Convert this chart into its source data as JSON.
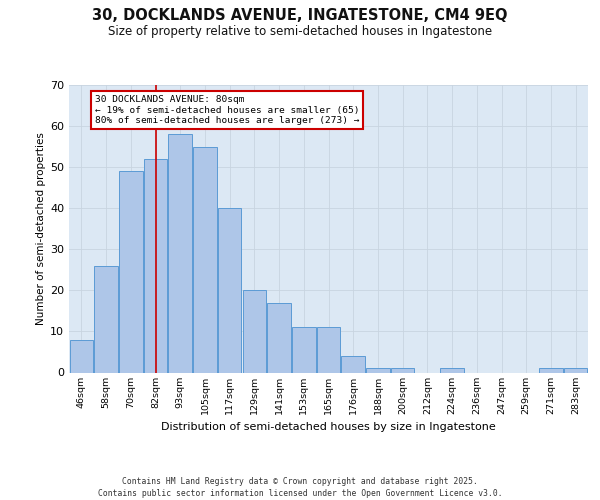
{
  "title1": "30, DOCKLANDS AVENUE, INGATESTONE, CM4 9EQ",
  "title2": "Size of property relative to semi-detached houses in Ingatestone",
  "xlabel": "Distribution of semi-detached houses by size in Ingatestone",
  "ylabel": "Number of semi-detached properties",
  "counts": [
    8,
    26,
    49,
    52,
    58,
    55,
    40,
    20,
    17,
    11,
    11,
    4,
    1,
    1,
    0,
    1,
    0,
    0,
    0,
    1,
    1
  ],
  "bar_color": "#aec6e8",
  "bar_edge_color": "#5b9bd5",
  "grid_color": "#c8d4e0",
  "background_color": "#dce8f4",
  "vline_color": "#cc0000",
  "vline_idx": 3,
  "annotation_title": "30 DOCKLANDS AVENUE: 80sqm",
  "annotation_line2": "← 19% of semi-detached houses are smaller (65)",
  "annotation_line3": "80% of semi-detached houses are larger (273) →",
  "annotation_box_color": "#cc0000",
  "ylim": [
    0,
    70
  ],
  "yticks": [
    0,
    10,
    20,
    30,
    40,
    50,
    60,
    70
  ],
  "footer_line1": "Contains HM Land Registry data © Crown copyright and database right 2025.",
  "footer_line2": "Contains public sector information licensed under the Open Government Licence v3.0.",
  "tick_labels": [
    "46sqm",
    "58sqm",
    "70sqm",
    "82sqm",
    "93sqm",
    "105sqm",
    "117sqm",
    "129sqm",
    "141sqm",
    "153sqm",
    "165sqm",
    "176sqm",
    "188sqm",
    "200sqm",
    "212sqm",
    "224sqm",
    "236sqm",
    "247sqm",
    "259sqm",
    "271sqm",
    "283sqm"
  ],
  "figsize": [
    6.0,
    5.0
  ],
  "dpi": 100
}
